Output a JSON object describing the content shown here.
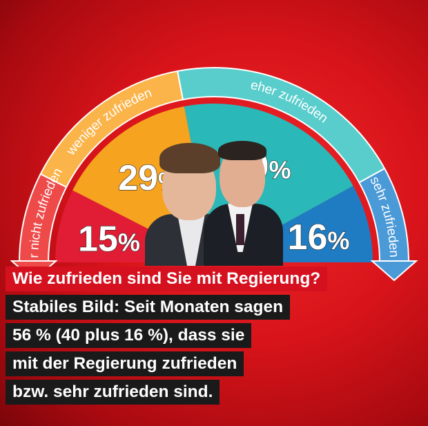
{
  "chart_data": {
    "type": "pie",
    "categories": [
      "gar nicht zufrieden",
      "weniger zufrieden",
      "eher zufrieden",
      "sehr zufrieden"
    ],
    "values": [
      15,
      29,
      40,
      16
    ],
    "value_labels": [
      "15",
      "29",
      "40",
      "16"
    ],
    "unit": "%",
    "colors": [
      "#e11d35",
      "#f6a31f",
      "#2ab9b8",
      "#1f7cc3"
    ],
    "title": "Wie zufrieden sind Sie mit Regierung?"
  },
  "caption": {
    "question": "Wie zufrieden sind Sie mit Regierung?",
    "lines": [
      "Stabiles Bild: Seit Monaten sagen",
      "56 % (40 plus 16 %), dass sie",
      "mit der Regierung zufrieden",
      "bzw. sehr zufrieden sind."
    ]
  }
}
